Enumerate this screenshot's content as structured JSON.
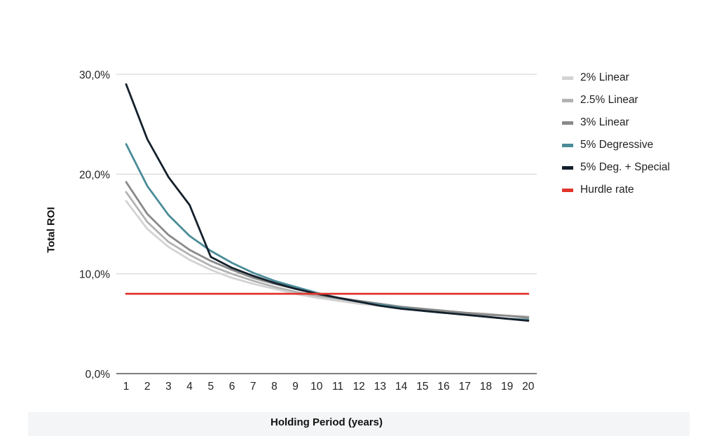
{
  "chart_data": {
    "type": "line",
    "title": "",
    "xlabel": "Holding Period (years)",
    "ylabel": "Total ROI",
    "x": [
      1,
      2,
      3,
      4,
      5,
      6,
      7,
      8,
      9,
      10,
      11,
      12,
      13,
      14,
      15,
      16,
      17,
      18,
      19,
      20
    ],
    "xticks": [
      "1",
      "2",
      "3",
      "4",
      "5",
      "6",
      "7",
      "8",
      "9",
      "10",
      "11",
      "12",
      "13",
      "14",
      "15",
      "16",
      "17",
      "18",
      "19",
      "20"
    ],
    "ylim": [
      0,
      30
    ],
    "yticks": [
      {
        "value": 0,
        "label": "0,0%"
      },
      {
        "value": 10,
        "label": "10,0%"
      },
      {
        "value": 20,
        "label": "20,0%"
      },
      {
        "value": 30,
        "label": "30,0%"
      }
    ],
    "grid": true,
    "legend_position": "right",
    "series": [
      {
        "name": "2% Linear",
        "color": "#d3d3d3",
        "values": [
          17.3,
          14.5,
          12.7,
          11.4,
          10.4,
          9.6,
          9.0,
          8.5,
          8.0,
          7.6,
          7.3,
          7.0,
          6.8,
          6.6,
          6.4,
          6.2,
          6.0,
          5.9,
          5.8,
          5.7
        ]
      },
      {
        "name": "2.5% Linear",
        "color": "#b2b2b2",
        "values": [
          18.2,
          15.2,
          13.2,
          11.9,
          10.8,
          10.0,
          9.3,
          8.7,
          8.2,
          7.8,
          7.5,
          7.2,
          6.9,
          6.7,
          6.5,
          6.3,
          6.1,
          6.0,
          5.8,
          5.7
        ]
      },
      {
        "name": "3% Linear",
        "color": "#8a8a8a",
        "values": [
          19.2,
          16.0,
          13.9,
          12.4,
          11.3,
          10.4,
          9.6,
          9.0,
          8.5,
          8.0,
          7.6,
          7.3,
          7.0,
          6.7,
          6.5,
          6.3,
          6.1,
          5.9,
          5.8,
          5.6
        ]
      },
      {
        "name": "5% Degressive",
        "color": "#4a8c98",
        "values": [
          23.0,
          18.8,
          15.9,
          13.8,
          12.3,
          11.1,
          10.1,
          9.3,
          8.7,
          8.1,
          7.6,
          7.2,
          6.9,
          6.6,
          6.3,
          6.1,
          5.9,
          5.7,
          5.5,
          5.4
        ]
      },
      {
        "name": "5% Deg. + Special",
        "color": "#14202b",
        "values": [
          29.0,
          23.5,
          19.7,
          16.9,
          11.7,
          10.6,
          9.8,
          9.1,
          8.5,
          8.0,
          7.6,
          7.2,
          6.8,
          6.5,
          6.3,
          6.1,
          5.9,
          5.7,
          5.5,
          5.3
        ]
      },
      {
        "name": "Hurdle rate",
        "color": "#e0352b",
        "values": [
          8,
          8,
          8,
          8,
          8,
          8,
          8,
          8,
          8,
          8,
          8,
          8,
          8,
          8,
          8,
          8,
          8,
          8,
          8,
          8
        ]
      }
    ]
  }
}
